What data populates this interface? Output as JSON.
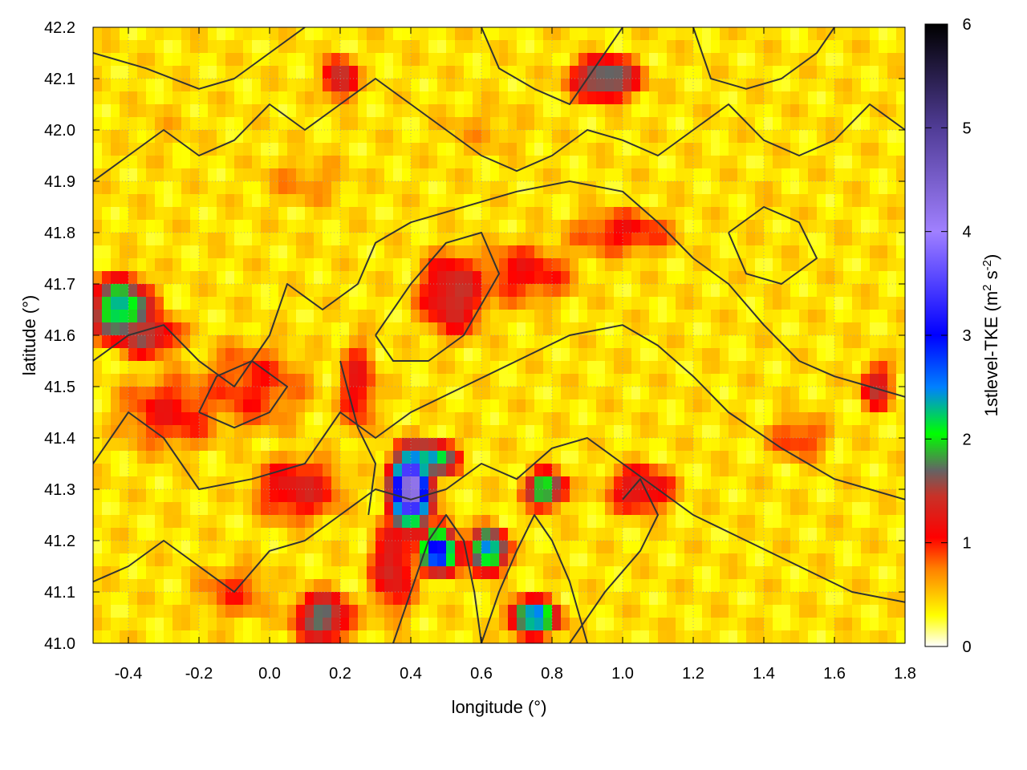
{
  "chart_data": {
    "type": "heatmap",
    "xlabel": "longitude (°)",
    "ylabel": "latitude (°)",
    "colorbar_label": "1stlevel-TKE (m² s⁻²)",
    "colorbar_label_parts": {
      "main": "1stlevel-TKE (m",
      "sup1": "2",
      "mid": " s",
      "sup2": "-2",
      "end": ")"
    },
    "xlim": [
      -0.5,
      1.8
    ],
    "ylim": [
      41.0,
      42.2
    ],
    "clim": [
      0,
      6
    ],
    "x_ticks": [
      {
        "value": -0.4,
        "label": "-0.4"
      },
      {
        "value": -0.2,
        "label": "-0.2"
      },
      {
        "value": 0.0,
        "label": "0.0"
      },
      {
        "value": 0.2,
        "label": "0.2"
      },
      {
        "value": 0.4,
        "label": "0.4"
      },
      {
        "value": 0.6,
        "label": "0.6"
      },
      {
        "value": 0.8,
        "label": "0.8"
      },
      {
        "value": 1.0,
        "label": "1.0"
      },
      {
        "value": 1.2,
        "label": "1.2"
      },
      {
        "value": 1.4,
        "label": "1.4"
      },
      {
        "value": 1.6,
        "label": "1.6"
      },
      {
        "value": 1.8,
        "label": "1.8"
      }
    ],
    "y_ticks": [
      {
        "value": 41.0,
        "label": "41.0"
      },
      {
        "value": 41.1,
        "label": "41.1"
      },
      {
        "value": 41.2,
        "label": "41.2"
      },
      {
        "value": 41.3,
        "label": "41.3"
      },
      {
        "value": 41.4,
        "label": "41.4"
      },
      {
        "value": 41.5,
        "label": "41.5"
      },
      {
        "value": 41.6,
        "label": "41.6"
      },
      {
        "value": 41.7,
        "label": "41.7"
      },
      {
        "value": 41.8,
        "label": "41.8"
      },
      {
        "value": 41.9,
        "label": "41.9"
      },
      {
        "value": 42.0,
        "label": "42.0"
      },
      {
        "value": 42.1,
        "label": "42.1"
      },
      {
        "value": 42.2,
        "label": "42.2"
      }
    ],
    "colorbar_ticks": [
      {
        "value": 0,
        "label": "0"
      },
      {
        "value": 1,
        "label": "1"
      },
      {
        "value": 2,
        "label": "2"
      },
      {
        "value": 3,
        "label": "3"
      },
      {
        "value": 4,
        "label": "4"
      },
      {
        "value": 5,
        "label": "5"
      },
      {
        "value": 6,
        "label": "6"
      }
    ],
    "colormap": [
      {
        "v": 0.0,
        "color": "#ffffff"
      },
      {
        "v": 0.3,
        "color": "#ffff00"
      },
      {
        "v": 0.75,
        "color": "#ff8000"
      },
      {
        "v": 1.05,
        "color": "#ff0000"
      },
      {
        "v": 1.45,
        "color": "#c83228"
      },
      {
        "v": 1.7,
        "color": "#646464"
      },
      {
        "v": 2.05,
        "color": "#00ff00"
      },
      {
        "v": 2.5,
        "color": "#0080ff"
      },
      {
        "v": 3.0,
        "color": "#0000ff"
      },
      {
        "v": 4.0,
        "color": "#a080ff"
      },
      {
        "v": 5.0,
        "color": "#503c96"
      },
      {
        "v": 6.0,
        "color": "#000000"
      }
    ],
    "grid": true,
    "field_blobs": [
      {
        "lon": -0.28,
        "lat": 41.45,
        "rlon": 0.2,
        "rlat": 0.1,
        "value": 1.1
      },
      {
        "lon": -0.05,
        "lat": 41.5,
        "rlon": 0.22,
        "rlat": 0.12,
        "value": 1.0
      },
      {
        "lon": -0.42,
        "lat": 41.65,
        "rlon": 0.1,
        "rlat": 0.07,
        "value": 2.4
      },
      {
        "lon": -0.35,
        "lat": 41.6,
        "rlon": 0.12,
        "rlat": 0.05,
        "value": 1.6
      },
      {
        "lon": 0.08,
        "lat": 41.3,
        "rlon": 0.16,
        "rlat": 0.08,
        "value": 1.3
      },
      {
        "lon": 0.25,
        "lat": 41.5,
        "rlon": 0.07,
        "rlat": 0.12,
        "value": 1.2
      },
      {
        "lon": 0.52,
        "lat": 41.68,
        "rlon": 0.12,
        "rlat": 0.1,
        "value": 1.5
      },
      {
        "lon": 0.72,
        "lat": 41.72,
        "rlon": 0.2,
        "rlat": 0.08,
        "value": 1.1
      },
      {
        "lon": 1.0,
        "lat": 41.8,
        "rlon": 0.2,
        "rlat": 0.06,
        "value": 1.1
      },
      {
        "lon": 0.4,
        "lat": 41.3,
        "rlon": 0.06,
        "rlat": 0.08,
        "value": 4.5
      },
      {
        "lon": 0.46,
        "lat": 41.36,
        "rlon": 0.08,
        "rlat": 0.04,
        "value": 2.4
      },
      {
        "lon": 0.48,
        "lat": 41.18,
        "rlon": 0.06,
        "rlat": 0.05,
        "value": 3.2
      },
      {
        "lon": 0.62,
        "lat": 41.18,
        "rlon": 0.06,
        "rlat": 0.05,
        "value": 2.6
      },
      {
        "lon": 0.78,
        "lat": 41.3,
        "rlon": 0.07,
        "rlat": 0.04,
        "value": 2.2
      },
      {
        "lon": 0.75,
        "lat": 41.05,
        "rlon": 0.08,
        "rlat": 0.04,
        "value": 2.6
      },
      {
        "lon": 0.15,
        "lat": 41.05,
        "rlon": 0.1,
        "rlat": 0.06,
        "value": 1.8
      },
      {
        "lon": -0.1,
        "lat": 41.1,
        "rlon": 0.16,
        "rlat": 0.08,
        "value": 0.9
      },
      {
        "lon": 0.95,
        "lat": 42.1,
        "rlon": 0.12,
        "rlat": 0.05,
        "value": 1.9
      },
      {
        "lon": 0.2,
        "lat": 42.1,
        "rlon": 0.06,
        "rlat": 0.05,
        "value": 1.6
      },
      {
        "lon": 1.05,
        "lat": 41.3,
        "rlon": 0.12,
        "rlat": 0.06,
        "value": 1.4
      },
      {
        "lon": 1.5,
        "lat": 41.4,
        "rlon": 0.12,
        "rlat": 0.06,
        "value": 1.0
      },
      {
        "lon": 1.72,
        "lat": 41.5,
        "rlon": 0.06,
        "rlat": 0.06,
        "value": 1.4
      },
      {
        "lon": 0.1,
        "lat": 41.9,
        "rlon": 0.22,
        "rlat": 0.08,
        "value": 0.7
      },
      {
        "lon": 0.6,
        "lat": 42.0,
        "rlon": 0.25,
        "rlat": 0.1,
        "value": 0.6
      },
      {
        "lon": 1.4,
        "lat": 41.85,
        "rlon": 0.3,
        "rlat": 0.15,
        "value": 0.45
      },
      {
        "lon": 1.5,
        "lat": 41.1,
        "rlon": 0.3,
        "rlat": 0.08,
        "value": 0.35
      },
      {
        "lon": -0.3,
        "lat": 42.0,
        "rlon": 0.25,
        "rlat": 0.15,
        "value": 0.5
      },
      {
        "lon": 0.95,
        "lat": 41.55,
        "rlon": 0.15,
        "rlat": 0.1,
        "value": 0.25
      },
      {
        "lon": 0.35,
        "lat": 41.15,
        "rlon": 0.08,
        "rlat": 0.12,
        "value": 1.4
      }
    ],
    "field_base": 0.4,
    "contours": [
      [
        [
          -0.5,
          41.55
        ],
        [
          -0.4,
          41.6
        ],
        [
          -0.3,
          41.62
        ],
        [
          -0.2,
          41.55
        ],
        [
          -0.1,
          41.5
        ],
        [
          0.0,
          41.6
        ],
        [
          0.05,
          41.7
        ],
        [
          0.15,
          41.65
        ],
        [
          0.25,
          41.7
        ],
        [
          0.3,
          41.78
        ],
        [
          0.4,
          41.82
        ],
        [
          0.55,
          41.85
        ],
        [
          0.7,
          41.88
        ],
        [
          0.85,
          41.9
        ],
        [
          1.0,
          41.88
        ],
        [
          1.1,
          41.82
        ],
        [
          1.2,
          41.75
        ],
        [
          1.3,
          41.7
        ],
        [
          1.4,
          41.62
        ],
        [
          1.5,
          41.55
        ],
        [
          1.6,
          41.52
        ],
        [
          1.7,
          41.5
        ],
        [
          1.8,
          41.48
        ]
      ],
      [
        [
          -0.5,
          41.9
        ],
        [
          -0.4,
          41.95
        ],
        [
          -0.3,
          42.0
        ],
        [
          -0.2,
          41.95
        ],
        [
          -0.1,
          41.98
        ],
        [
          0.0,
          42.05
        ],
        [
          0.1,
          42.0
        ],
        [
          0.2,
          42.05
        ],
        [
          0.3,
          42.1
        ],
        [
          0.4,
          42.05
        ],
        [
          0.5,
          42.0
        ],
        [
          0.6,
          41.95
        ],
        [
          0.7,
          41.92
        ],
        [
          0.8,
          41.95
        ],
        [
          0.9,
          42.0
        ],
        [
          1.0,
          41.98
        ],
        [
          1.1,
          41.95
        ],
        [
          1.2,
          42.0
        ],
        [
          1.3,
          42.05
        ],
        [
          1.4,
          41.98
        ],
        [
          1.5,
          41.95
        ],
        [
          1.6,
          41.98
        ],
        [
          1.7,
          42.05
        ],
        [
          1.8,
          42.0
        ]
      ],
      [
        [
          -0.5,
          41.35
        ],
        [
          -0.4,
          41.45
        ],
        [
          -0.3,
          41.4
        ],
        [
          -0.2,
          41.3
        ],
        [
          -0.05,
          41.32
        ],
        [
          0.1,
          41.35
        ],
        [
          0.2,
          41.45
        ],
        [
          0.3,
          41.4
        ],
        [
          0.4,
          41.45
        ],
        [
          0.55,
          41.5
        ],
        [
          0.7,
          41.55
        ],
        [
          0.85,
          41.6
        ],
        [
          1.0,
          41.62
        ],
        [
          1.1,
          41.58
        ],
        [
          1.2,
          41.52
        ],
        [
          1.3,
          41.45
        ],
        [
          1.45,
          41.38
        ],
        [
          1.6,
          41.32
        ],
        [
          1.7,
          41.3
        ],
        [
          1.8,
          41.28
        ]
      ],
      [
        [
          -0.5,
          41.12
        ],
        [
          -0.4,
          41.15
        ],
        [
          -0.3,
          41.2
        ],
        [
          -0.2,
          41.15
        ],
        [
          -0.1,
          41.1
        ],
        [
          0.0,
          41.18
        ],
        [
          0.1,
          41.2
        ],
        [
          0.2,
          41.25
        ],
        [
          0.3,
          41.3
        ],
        [
          0.4,
          41.28
        ],
        [
          0.5,
          41.3
        ],
        [
          0.6,
          41.35
        ],
        [
          0.7,
          41.32
        ],
        [
          0.8,
          41.38
        ],
        [
          0.9,
          41.4
        ],
        [
          1.0,
          41.35
        ],
        [
          1.1,
          41.3
        ],
        [
          1.2,
          41.25
        ],
        [
          1.35,
          41.2
        ],
        [
          1.5,
          41.15
        ],
        [
          1.65,
          41.1
        ],
        [
          1.8,
          41.08
        ]
      ],
      [
        [
          0.35,
          41.0
        ],
        [
          0.4,
          41.1
        ],
        [
          0.45,
          41.2
        ],
        [
          0.5,
          41.25
        ],
        [
          0.55,
          41.2
        ],
        [
          0.58,
          41.1
        ],
        [
          0.6,
          41.0
        ]
      ],
      [
        [
          0.6,
          41.0
        ],
        [
          0.65,
          41.1
        ],
        [
          0.7,
          41.18
        ],
        [
          0.75,
          41.25
        ],
        [
          0.8,
          41.2
        ],
        [
          0.85,
          41.12
        ],
        [
          0.9,
          41.0
        ]
      ],
      [
        [
          0.85,
          41.0
        ],
        [
          0.95,
          41.1
        ],
        [
          1.05,
          41.18
        ],
        [
          1.1,
          41.25
        ],
        [
          1.05,
          41.32
        ],
        [
          1.0,
          41.28
        ]
      ],
      [
        [
          -0.5,
          42.15
        ],
        [
          -0.35,
          42.12
        ],
        [
          -0.2,
          42.08
        ],
        [
          -0.1,
          42.1
        ],
        [
          0.0,
          42.15
        ],
        [
          0.1,
          42.2
        ]
      ],
      [
        [
          0.6,
          42.2
        ],
        [
          0.65,
          42.12
        ],
        [
          0.75,
          42.08
        ],
        [
          0.85,
          42.05
        ],
        [
          0.9,
          42.1
        ],
        [
          0.95,
          42.15
        ],
        [
          1.0,
          42.2
        ]
      ],
      [
        [
          1.2,
          42.2
        ],
        [
          1.25,
          42.1
        ],
        [
          1.35,
          42.08
        ],
        [
          1.45,
          42.1
        ],
        [
          1.55,
          42.15
        ],
        [
          1.6,
          42.2
        ]
      ],
      [
        [
          0.3,
          41.6
        ],
        [
          0.4,
          41.7
        ],
        [
          0.5,
          41.78
        ],
        [
          0.6,
          41.8
        ],
        [
          0.65,
          41.72
        ],
        [
          0.55,
          41.6
        ],
        [
          0.45,
          41.55
        ],
        [
          0.35,
          41.55
        ],
        [
          0.3,
          41.6
        ]
      ],
      [
        [
          -0.2,
          41.45
        ],
        [
          -0.1,
          41.42
        ],
        [
          0.0,
          41.45
        ],
        [
          0.05,
          41.5
        ],
        [
          -0.05,
          41.55
        ],
        [
          -0.15,
          41.52
        ],
        [
          -0.2,
          41.45
        ]
      ],
      [
        [
          1.3,
          41.8
        ],
        [
          1.4,
          41.85
        ],
        [
          1.5,
          41.82
        ],
        [
          1.55,
          41.75
        ],
        [
          1.45,
          41.7
        ],
        [
          1.35,
          41.72
        ],
        [
          1.3,
          41.8
        ]
      ],
      [
        [
          0.2,
          41.55
        ],
        [
          0.25,
          41.42
        ],
        [
          0.3,
          41.35
        ],
        [
          0.28,
          41.25
        ]
      ]
    ]
  }
}
